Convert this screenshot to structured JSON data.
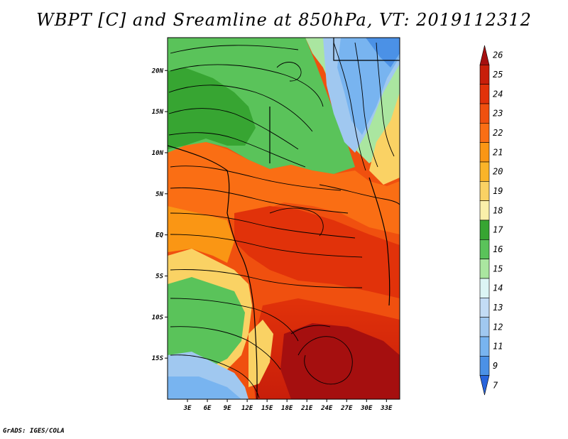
{
  "title": "WBPT [C] and Sreamline at 850hPa, VT: 2019112312",
  "credit": "GrADS: IGES/COLA",
  "map": {
    "lon_range": [
      0,
      35
    ],
    "lat_range": [
      -20,
      24
    ],
    "lat_ticks": [
      {
        "value": 20,
        "label": "20N"
      },
      {
        "value": 15,
        "label": "15N"
      },
      {
        "value": 10,
        "label": "10N"
      },
      {
        "value": 5,
        "label": "5N"
      },
      {
        "value": 0,
        "label": "EQ"
      },
      {
        "value": -5,
        "label": "5S"
      },
      {
        "value": -10,
        "label": "10S"
      },
      {
        "value": -15,
        "label": "15S"
      }
    ],
    "lon_ticks": [
      {
        "value": 3,
        "label": "3E"
      },
      {
        "value": 6,
        "label": "6E"
      },
      {
        "value": 9,
        "label": "9E"
      },
      {
        "value": 12,
        "label": "12E"
      },
      {
        "value": 15,
        "label": "15E"
      },
      {
        "value": 18,
        "label": "18E"
      },
      {
        "value": 21,
        "label": "21E"
      },
      {
        "value": 24,
        "label": "24E"
      },
      {
        "value": 27,
        "label": "27E"
      },
      {
        "value": 30,
        "label": "30E"
      },
      {
        "value": 33,
        "label": "33E"
      }
    ]
  },
  "colorbar": {
    "levels": [
      "26",
      "25",
      "24",
      "23",
      "22",
      "21",
      "20",
      "19",
      "18",
      "17",
      "16",
      "15",
      "14",
      "13",
      "12",
      "11",
      "9",
      "7"
    ],
    "colors": [
      "#a50f0f",
      "#c81e0a",
      "#e1320a",
      "#f0500f",
      "#fa6e14",
      "#fa9614",
      "#fab428",
      "#fad264",
      "#faf0aa",
      "#37a532",
      "#5ac35a",
      "#aae6a0",
      "#dcf5f5",
      "#c3dcf5",
      "#a0c8f0",
      "#78b4f0",
      "#4b91e6",
      "#2864dc"
    ]
  }
}
